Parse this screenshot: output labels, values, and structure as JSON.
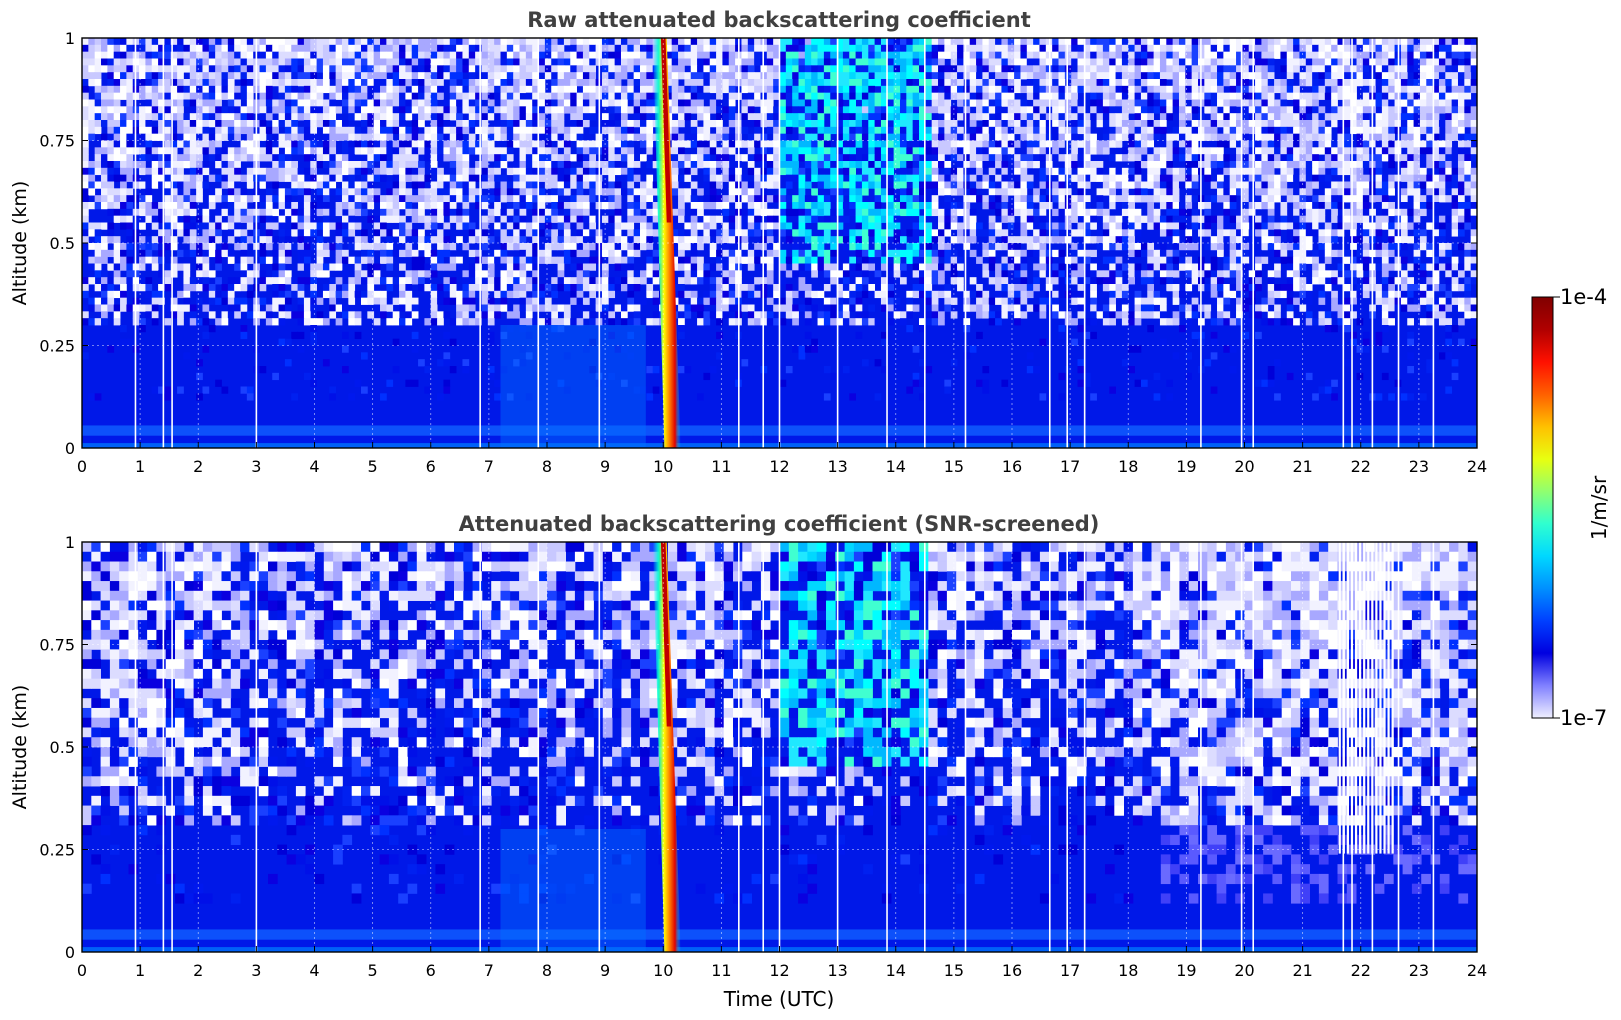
{
  "chart_data": [
    {
      "type": "heatmap",
      "title": "Raw attenuated backscattering coefficient",
      "xlabel": "",
      "ylabel": "Altitude (km)",
      "xlim": [
        0,
        24
      ],
      "ylim": [
        0,
        1
      ],
      "xticks": [
        "0",
        "1",
        "2",
        "3",
        "4",
        "5",
        "6",
        "7",
        "8",
        "9",
        "10",
        "11",
        "12",
        "13",
        "14",
        "15",
        "16",
        "17",
        "18",
        "19",
        "20",
        "21",
        "22",
        "23",
        "24"
      ],
      "yticks": [
        "0",
        "0.25",
        "0.5",
        "0.75",
        "1"
      ],
      "grid": true,
      "features": [
        {
          "kind": "plume",
          "time_utc": 10.0,
          "altitude_km": [
            0,
            1
          ],
          "level": "1e-4"
        },
        {
          "kind": "elevated-signal",
          "time_utc": [
            12.0,
            14.5
          ],
          "altitude_km": [
            0.5,
            1
          ],
          "level": "moderate"
        },
        {
          "kind": "surface-layer",
          "time_utc": [
            0,
            24
          ],
          "altitude_km": [
            0,
            0.05
          ],
          "level": "moderate"
        }
      ],
      "gaps_utc": [
        0.92,
        1.4,
        1.55,
        3.0,
        6.85,
        7.85,
        8.9,
        11.3,
        11.72,
        12.0,
        13.0,
        13.85,
        14.5,
        15.2,
        16.65,
        16.95,
        17.25,
        19.25,
        19.95,
        20.15,
        21.7,
        21.85,
        22.2,
        22.65,
        23.25
      ]
    },
    {
      "type": "heatmap",
      "title": "Attenuated backscattering coefficient (SNR-screened)",
      "xlabel": "Time (UTC)",
      "ylabel": "Altitude (km)",
      "xlim": [
        0,
        24
      ],
      "ylim": [
        0,
        1
      ],
      "xticks": [
        "0",
        "1",
        "2",
        "3",
        "4",
        "5",
        "6",
        "7",
        "8",
        "9",
        "10",
        "11",
        "12",
        "13",
        "14",
        "15",
        "16",
        "17",
        "18",
        "19",
        "20",
        "21",
        "22",
        "23",
        "24"
      ],
      "yticks": [
        "0",
        "0.25",
        "0.5",
        "0.75",
        "1"
      ],
      "grid": true,
      "features": [
        {
          "kind": "plume",
          "time_utc": 10.0,
          "altitude_km": [
            0,
            1
          ],
          "level": "1e-4"
        },
        {
          "kind": "elevated-signal",
          "time_utc": [
            12.0,
            14.5
          ],
          "altitude_km": [
            0.5,
            1
          ],
          "level": "moderate"
        },
        {
          "kind": "screened-sparse-region",
          "time_utc": [
            21.6,
            22.6
          ],
          "altitude_km": [
            0.24,
            1
          ]
        }
      ],
      "gaps_utc": [
        0.92,
        1.4,
        1.55,
        3.0,
        6.85,
        7.85,
        8.9,
        11.3,
        11.72,
        12.0,
        13.0,
        13.85,
        14.5,
        15.2,
        16.65,
        16.95,
        17.25,
        19.25,
        19.95,
        20.15,
        21.7,
        21.85,
        22.2,
        22.65,
        23.25
      ]
    }
  ],
  "colorbar": {
    "label": "1/m/sr",
    "max_label": "1e-4",
    "min_label": "1e-7",
    "colormap": "jet",
    "low_color": "#f0f0ff",
    "stops": [
      "#f0f0ff",
      "#8080ff",
      "#0000e0",
      "#0040ff",
      "#0090ff",
      "#00d8ff",
      "#30ffcf",
      "#90ff70",
      "#e8ff10",
      "#ffc000",
      "#ff6000",
      "#ff1000",
      "#b00000",
      "#800000"
    ]
  }
}
